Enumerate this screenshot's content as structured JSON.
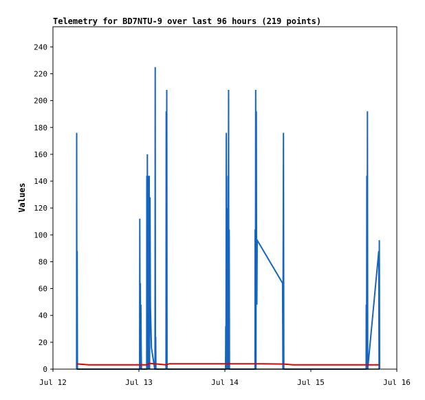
{
  "chart_data": {
    "type": "line",
    "title": "Telemetry for BD7NTU-9 over last 96 hours (219 points)",
    "xlabel": "",
    "ylabel": "Values",
    "x_ticks": [
      "Jul 12",
      "Jul 13",
      "Jul 14",
      "Jul 15",
      "Jul 16"
    ],
    "y_ticks": [
      0,
      20,
      40,
      60,
      80,
      100,
      120,
      140,
      160,
      180,
      200,
      220,
      240
    ],
    "xlim": [
      "Jul 12 00:00",
      "Jul 16 00:00"
    ],
    "ylim": [
      0,
      255
    ],
    "grid": false,
    "series": [
      {
        "name": "",
        "color": "#1565c0",
        "points": [
          [
            "Jul 12 06:36",
            0
          ],
          [
            "Jul 12 06:38",
            176
          ],
          [
            "Jul 12 06:42",
            0
          ],
          [
            "Jul 12 06:46",
            88
          ],
          [
            "Jul 12 06:50",
            0
          ],
          [
            "Jul 13 00:12",
            0
          ],
          [
            "Jul 13 00:15",
            112
          ],
          [
            "Jul 13 00:20",
            0
          ],
          [
            "Jul 13 00:24",
            64
          ],
          [
            "Jul 13 00:29",
            0
          ],
          [
            "Jul 13 00:33",
            48
          ],
          [
            "Jul 13 00:38",
            16
          ],
          [
            "Jul 13 00:43",
            0
          ],
          [
            "Jul 13 02:10",
            0
          ],
          [
            "Jul 13 02:12",
            144
          ],
          [
            "Jul 13 02:17",
            0
          ],
          [
            "Jul 13 02:22",
            160
          ],
          [
            "Jul 13 02:28",
            0
          ],
          [
            "Jul 13 02:33",
            80
          ],
          [
            "Jul 13 02:38",
            0
          ],
          [
            "Jul 13 02:43",
            144
          ],
          [
            "Jul 13 02:48",
            0
          ],
          [
            "Jul 13 02:53",
            144
          ],
          [
            "Jul 13 02:58",
            0
          ],
          [
            "Jul 13 03:05",
            128
          ],
          [
            "Jul 13 03:12",
            48
          ],
          [
            "Jul 13 03:30",
            16
          ],
          [
            "Jul 13 04:25",
            0
          ],
          [
            "Jul 13 04:30",
            0
          ],
          [
            "Jul 13 04:33",
            225
          ],
          [
            "Jul 13 04:37",
            0
          ],
          [
            "Jul 13 04:41",
            24
          ],
          [
            "Jul 13 04:45",
            0
          ],
          [
            "Jul 13 07:34",
            0
          ],
          [
            "Jul 13 07:37",
            192
          ],
          [
            "Jul 13 07:41",
            0
          ],
          [
            "Jul 13 07:46",
            208
          ],
          [
            "Jul 13 07:51",
            0
          ],
          [
            "Jul 14 00:12",
            0
          ],
          [
            "Jul 14 00:15",
            32
          ],
          [
            "Jul 14 00:19",
            0
          ],
          [
            "Jul 14 00:24",
            176
          ],
          [
            "Jul 14 00:28",
            0
          ],
          [
            "Jul 14 00:33",
            88
          ],
          [
            "Jul 14 00:38",
            0
          ],
          [
            "Jul 14 00:43",
            120
          ],
          [
            "Jul 14 00:48",
            0
          ],
          [
            "Jul 14 00:53",
            144
          ],
          [
            "Jul 14 00:57",
            72
          ],
          [
            "Jul 14 01:02",
            208
          ],
          [
            "Jul 14 01:07",
            0
          ],
          [
            "Jul 14 01:12",
            104
          ],
          [
            "Jul 14 01:17",
            0
          ],
          [
            "Jul 14 08:24",
            0
          ],
          [
            "Jul 14 08:27",
            104
          ],
          [
            "Jul 14 08:31",
            0
          ],
          [
            "Jul 14 08:36",
            208
          ],
          [
            "Jul 14 08:41",
            0
          ],
          [
            "Jul 14 08:46",
            192
          ],
          [
            "Jul 14 08:51",
            80
          ],
          [
            "Jul 14 08:56",
            48
          ],
          [
            "Jul 14 09:02",
            96
          ],
          [
            "Jul 14 16:06",
            64
          ],
          [
            "Jul 14 16:12",
            0
          ],
          [
            "Jul 14 16:17",
            96
          ],
          [
            "Jul 14 16:22",
            176
          ],
          [
            "Jul 14 16:27",
            0
          ],
          [
            "Jul 15 15:26",
            0
          ],
          [
            "Jul 15 15:29",
            48
          ],
          [
            "Jul 15 15:34",
            0
          ],
          [
            "Jul 15 15:38",
            144
          ],
          [
            "Jul 15 15:43",
            0
          ],
          [
            "Jul 15 15:48",
            192
          ],
          [
            "Jul 15 15:53",
            0
          ],
          [
            "Jul 15 18:58",
            88
          ],
          [
            "Jul 15 19:03",
            0
          ],
          [
            "Jul 15 19:07",
            96
          ],
          [
            "Jul 15 19:12",
            0
          ]
        ]
      },
      {
        "name": "",
        "color": "#e00000",
        "points": [
          [
            "Jul 12 06:36",
            3.9
          ],
          [
            "Jul 12 08:10",
            3.6
          ],
          [
            "Jul 12 10:00",
            3.2
          ],
          [
            "Jul 13 02:10",
            3.2
          ],
          [
            "Jul 13 03:00",
            4.3
          ],
          [
            "Jul 13 05:30",
            3.7
          ],
          [
            "Jul 13 07:30",
            3.2
          ],
          [
            "Jul 13 08:30",
            4.0
          ],
          [
            "Jul 14 08:30",
            4.0
          ],
          [
            "Jul 14 16:30",
            3.8
          ],
          [
            "Jul 14 19:00",
            3.2
          ],
          [
            "Jul 15 19:10",
            3.2
          ]
        ]
      },
      {
        "name": "",
        "color": "#000000",
        "points": [
          [
            "Jul 12 06:36",
            0
          ],
          [
            "Jul 15 19:12",
            0
          ]
        ]
      }
    ]
  }
}
